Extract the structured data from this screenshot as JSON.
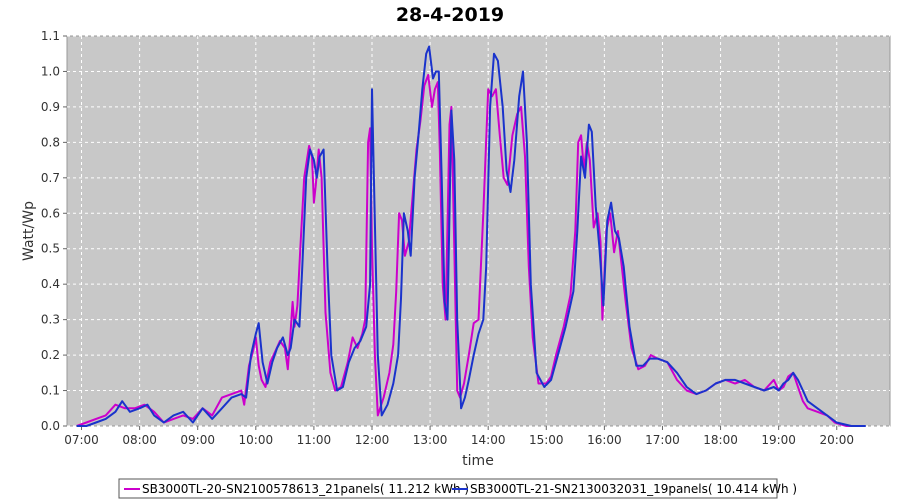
{
  "chart_data": {
    "type": "line",
    "title": "28-4-2019",
    "xlabel": "time",
    "ylabel": "Watt/Wp",
    "xlim": [
      "06:45",
      "20:55"
    ],
    "ylim": [
      0,
      1.1
    ],
    "x_ticks": [
      "07:00",
      "08:00",
      "09:00",
      "10:00",
      "11:00",
      "12:00",
      "13:00",
      "14:00",
      "15:00",
      "16:00",
      "17:00",
      "18:00",
      "19:00",
      "20:00"
    ],
    "y_ticks": [
      "0.0",
      "0.1",
      "0.2",
      "0.3",
      "0.4",
      "0.5",
      "0.6",
      "0.7",
      "0.8",
      "0.9",
      "1.0",
      "1.1"
    ],
    "grid": true,
    "legend_position": "bottom",
    "colors": {
      "plot_background": "#c8c8c8",
      "grid": "#ffffff"
    },
    "series": [
      {
        "name": "SB3000TL-20-SN2100578613_21panels( 11.212 kWh )",
        "color": "#cc00cc",
        "points": [
          [
            "06:55",
            0.0
          ],
          [
            "07:05",
            0.01
          ],
          [
            "07:15",
            0.02
          ],
          [
            "07:25",
            0.03
          ],
          [
            "07:35",
            0.06
          ],
          [
            "07:45",
            0.05
          ],
          [
            "07:55",
            0.05
          ],
          [
            "08:05",
            0.06
          ],
          [
            "08:15",
            0.04
          ],
          [
            "08:25",
            0.01
          ],
          [
            "08:35",
            0.02
          ],
          [
            "08:45",
            0.03
          ],
          [
            "08:55",
            0.02
          ],
          [
            "09:05",
            0.05
          ],
          [
            "09:15",
            0.03
          ],
          [
            "09:25",
            0.08
          ],
          [
            "09:35",
            0.09
          ],
          [
            "09:45",
            0.1
          ],
          [
            "09:48",
            0.06
          ],
          [
            "09:53",
            0.17
          ],
          [
            "09:57",
            0.21
          ],
          [
            "10:00",
            0.25
          ],
          [
            "10:03",
            0.17
          ],
          [
            "10:06",
            0.13
          ],
          [
            "10:10",
            0.11
          ],
          [
            "10:15",
            0.18
          ],
          [
            "10:20",
            0.21
          ],
          [
            "10:25",
            0.24
          ],
          [
            "10:30",
            0.22
          ],
          [
            "10:33",
            0.16
          ],
          [
            "10:36",
            0.27
          ],
          [
            "10:38",
            0.35
          ],
          [
            "10:40",
            0.28
          ],
          [
            "10:43",
            0.34
          ],
          [
            "10:46",
            0.5
          ],
          [
            "10:50",
            0.7
          ],
          [
            "10:55",
            0.79
          ],
          [
            "10:58",
            0.76
          ],
          [
            "11:00",
            0.63
          ],
          [
            "11:02",
            0.68
          ],
          [
            "11:05",
            0.78
          ],
          [
            "11:08",
            0.7
          ],
          [
            "11:12",
            0.32
          ],
          [
            "11:17",
            0.15
          ],
          [
            "11:22",
            0.1
          ],
          [
            "11:28",
            0.11
          ],
          [
            "11:35",
            0.18
          ],
          [
            "11:40",
            0.25
          ],
          [
            "11:45",
            0.22
          ],
          [
            "11:50",
            0.26
          ],
          [
            "11:53",
            0.3
          ],
          [
            "11:56",
            0.8
          ],
          [
            "11:58",
            0.84
          ],
          [
            "12:00",
            0.5
          ],
          [
            "12:03",
            0.2
          ],
          [
            "12:06",
            0.03
          ],
          [
            "12:12",
            0.08
          ],
          [
            "12:18",
            0.15
          ],
          [
            "12:22",
            0.23
          ],
          [
            "12:25",
            0.38
          ],
          [
            "12:28",
            0.6
          ],
          [
            "12:31",
            0.58
          ],
          [
            "12:34",
            0.48
          ],
          [
            "12:38",
            0.52
          ],
          [
            "12:42",
            0.65
          ],
          [
            "12:46",
            0.78
          ],
          [
            "12:50",
            0.86
          ],
          [
            "12:54",
            0.96
          ],
          [
            "12:58",
            0.99
          ],
          [
            "13:02",
            0.9
          ],
          [
            "13:05",
            0.95
          ],
          [
            "13:08",
            0.97
          ],
          [
            "13:10",
            0.78
          ],
          [
            "13:13",
            0.4
          ],
          [
            "13:16",
            0.3
          ],
          [
            "13:20",
            0.85
          ],
          [
            "13:22",
            0.9
          ],
          [
            "13:25",
            0.5
          ],
          [
            "13:28",
            0.1
          ],
          [
            "13:31",
            0.08
          ],
          [
            "13:35",
            0.12
          ],
          [
            "13:40",
            0.2
          ],
          [
            "13:45",
            0.29
          ],
          [
            "13:50",
            0.3
          ],
          [
            "13:55",
            0.6
          ],
          [
            "14:00",
            0.95
          ],
          [
            "14:04",
            0.93
          ],
          [
            "14:08",
            0.95
          ],
          [
            "14:12",
            0.82
          ],
          [
            "14:16",
            0.7
          ],
          [
            "14:20",
            0.68
          ],
          [
            "14:25",
            0.82
          ],
          [
            "14:30",
            0.88
          ],
          [
            "14:34",
            0.9
          ],
          [
            "14:38",
            0.76
          ],
          [
            "14:42",
            0.45
          ],
          [
            "14:46",
            0.25
          ],
          [
            "14:52",
            0.12
          ],
          [
            "15:00",
            0.12
          ],
          [
            "15:05",
            0.14
          ],
          [
            "15:10",
            0.2
          ],
          [
            "15:18",
            0.28
          ],
          [
            "15:25",
            0.37
          ],
          [
            "15:30",
            0.55
          ],
          [
            "15:33",
            0.8
          ],
          [
            "15:36",
            0.82
          ],
          [
            "15:39",
            0.72
          ],
          [
            "15:42",
            0.8
          ],
          [
            "15:45",
            0.75
          ],
          [
            "15:49",
            0.56
          ],
          [
            "15:53",
            0.6
          ],
          [
            "15:56",
            0.52
          ],
          [
            "15:58",
            0.3
          ],
          [
            "16:02",
            0.55
          ],
          [
            "16:06",
            0.6
          ],
          [
            "16:10",
            0.49
          ],
          [
            "16:14",
            0.55
          ],
          [
            "16:18",
            0.45
          ],
          [
            "16:22",
            0.35
          ],
          [
            "16:28",
            0.22
          ],
          [
            "16:35",
            0.16
          ],
          [
            "16:42",
            0.17
          ],
          [
            "16:48",
            0.2
          ],
          [
            "16:55",
            0.19
          ],
          [
            "17:05",
            0.18
          ],
          [
            "17:15",
            0.13
          ],
          [
            "17:25",
            0.1
          ],
          [
            "17:35",
            0.09
          ],
          [
            "17:45",
            0.1
          ],
          [
            "17:55",
            0.12
          ],
          [
            "18:05",
            0.13
          ],
          [
            "18:15",
            0.12
          ],
          [
            "18:25",
            0.13
          ],
          [
            "18:35",
            0.11
          ],
          [
            "18:45",
            0.1
          ],
          [
            "18:55",
            0.13
          ],
          [
            "19:00",
            0.1
          ],
          [
            "19:05",
            0.11
          ],
          [
            "19:10",
            0.14
          ],
          [
            "19:15",
            0.15
          ],
          [
            "19:20",
            0.11
          ],
          [
            "19:25",
            0.07
          ],
          [
            "19:30",
            0.05
          ],
          [
            "19:40",
            0.04
          ],
          [
            "19:50",
            0.03
          ],
          [
            "19:58",
            0.01
          ],
          [
            "20:10",
            0.0
          ],
          [
            "20:20",
            0.0
          ]
        ]
      },
      {
        "name": "SB3000TL-21-SN2130032031_19panels( 10.414 kWh )",
        "color": "#1a33cc",
        "points": [
          [
            "06:55",
            0.0
          ],
          [
            "07:05",
            0.0
          ],
          [
            "07:15",
            0.01
          ],
          [
            "07:25",
            0.02
          ],
          [
            "07:35",
            0.04
          ],
          [
            "07:42",
            0.07
          ],
          [
            "07:50",
            0.04
          ],
          [
            "08:00",
            0.05
          ],
          [
            "08:08",
            0.06
          ],
          [
            "08:15",
            0.03
          ],
          [
            "08:25",
            0.01
          ],
          [
            "08:35",
            0.03
          ],
          [
            "08:45",
            0.04
          ],
          [
            "08:55",
            0.01
          ],
          [
            "09:05",
            0.05
          ],
          [
            "09:15",
            0.02
          ],
          [
            "09:25",
            0.05
          ],
          [
            "09:35",
            0.08
          ],
          [
            "09:45",
            0.09
          ],
          [
            "09:50",
            0.08
          ],
          [
            "09:55",
            0.2
          ],
          [
            "10:00",
            0.26
          ],
          [
            "10:03",
            0.29
          ],
          [
            "10:07",
            0.18
          ],
          [
            "10:12",
            0.12
          ],
          [
            "10:17",
            0.18
          ],
          [
            "10:22",
            0.22
          ],
          [
            "10:28",
            0.25
          ],
          [
            "10:33",
            0.2
          ],
          [
            "10:36",
            0.22
          ],
          [
            "10:40",
            0.3
          ],
          [
            "10:45",
            0.28
          ],
          [
            "10:48",
            0.45
          ],
          [
            "10:52",
            0.7
          ],
          [
            "10:56",
            0.78
          ],
          [
            "11:00",
            0.75
          ],
          [
            "11:03",
            0.7
          ],
          [
            "11:06",
            0.76
          ],
          [
            "11:10",
            0.78
          ],
          [
            "11:14",
            0.45
          ],
          [
            "11:18",
            0.2
          ],
          [
            "11:24",
            0.1
          ],
          [
            "11:30",
            0.11
          ],
          [
            "11:36",
            0.18
          ],
          [
            "11:42",
            0.22
          ],
          [
            "11:48",
            0.24
          ],
          [
            "11:54",
            0.28
          ],
          [
            "11:58",
            0.4
          ],
          [
            "12:00",
            0.95
          ],
          [
            "12:02",
            0.7
          ],
          [
            "12:06",
            0.2
          ],
          [
            "12:10",
            0.03
          ],
          [
            "12:16",
            0.06
          ],
          [
            "12:22",
            0.12
          ],
          [
            "12:27",
            0.2
          ],
          [
            "12:30",
            0.36
          ],
          [
            "12:33",
            0.6
          ],
          [
            "12:37",
            0.55
          ],
          [
            "12:40",
            0.48
          ],
          [
            "12:44",
            0.7
          ],
          [
            "12:48",
            0.82
          ],
          [
            "12:52",
            0.95
          ],
          [
            "12:56",
            1.05
          ],
          [
            "12:59",
            1.07
          ],
          [
            "13:03",
            0.98
          ],
          [
            "13:06",
            1.0
          ],
          [
            "13:09",
            1.0
          ],
          [
            "13:12",
            0.7
          ],
          [
            "13:15",
            0.35
          ],
          [
            "13:18",
            0.3
          ],
          [
            "13:22",
            0.89
          ],
          [
            "13:25",
            0.75
          ],
          [
            "13:28",
            0.3
          ],
          [
            "13:32",
            0.05
          ],
          [
            "13:36",
            0.08
          ],
          [
            "13:40",
            0.13
          ],
          [
            "13:45",
            0.2
          ],
          [
            "13:50",
            0.26
          ],
          [
            "13:55",
            0.3
          ],
          [
            "13:58",
            0.45
          ],
          [
            "14:02",
            0.9
          ],
          [
            "14:06",
            1.05
          ],
          [
            "14:10",
            1.03
          ],
          [
            "14:15",
            0.9
          ],
          [
            "14:19",
            0.72
          ],
          [
            "14:23",
            0.66
          ],
          [
            "14:27",
            0.75
          ],
          [
            "14:32",
            0.93
          ],
          [
            "14:36",
            1.0
          ],
          [
            "14:40",
            0.8
          ],
          [
            "14:44",
            0.4
          ],
          [
            "14:50",
            0.15
          ],
          [
            "14:58",
            0.11
          ],
          [
            "15:05",
            0.13
          ],
          [
            "15:12",
            0.2
          ],
          [
            "15:20",
            0.28
          ],
          [
            "15:28",
            0.38
          ],
          [
            "15:32",
            0.55
          ],
          [
            "15:36",
            0.76
          ],
          [
            "15:40",
            0.7
          ],
          [
            "15:44",
            0.85
          ],
          [
            "15:47",
            0.83
          ],
          [
            "15:51",
            0.62
          ],
          [
            "15:55",
            0.5
          ],
          [
            "15:59",
            0.34
          ],
          [
            "16:03",
            0.58
          ],
          [
            "16:07",
            0.63
          ],
          [
            "16:11",
            0.55
          ],
          [
            "16:15",
            0.53
          ],
          [
            "16:20",
            0.45
          ],
          [
            "16:26",
            0.28
          ],
          [
            "16:33",
            0.17
          ],
          [
            "16:40",
            0.17
          ],
          [
            "16:47",
            0.19
          ],
          [
            "16:55",
            0.19
          ],
          [
            "17:05",
            0.18
          ],
          [
            "17:15",
            0.15
          ],
          [
            "17:25",
            0.11
          ],
          [
            "17:35",
            0.09
          ],
          [
            "17:45",
            0.1
          ],
          [
            "17:55",
            0.12
          ],
          [
            "18:05",
            0.13
          ],
          [
            "18:15",
            0.13
          ],
          [
            "18:25",
            0.12
          ],
          [
            "18:35",
            0.11
          ],
          [
            "18:45",
            0.1
          ],
          [
            "18:55",
            0.11
          ],
          [
            "19:00",
            0.1
          ],
          [
            "19:05",
            0.12
          ],
          [
            "19:10",
            0.13
          ],
          [
            "19:15",
            0.15
          ],
          [
            "19:20",
            0.13
          ],
          [
            "19:25",
            0.1
          ],
          [
            "19:30",
            0.07
          ],
          [
            "19:40",
            0.05
          ],
          [
            "19:50",
            0.03
          ],
          [
            "20:00",
            0.01
          ],
          [
            "20:15",
            0.0
          ],
          [
            "20:30",
            0.0
          ]
        ]
      }
    ]
  }
}
